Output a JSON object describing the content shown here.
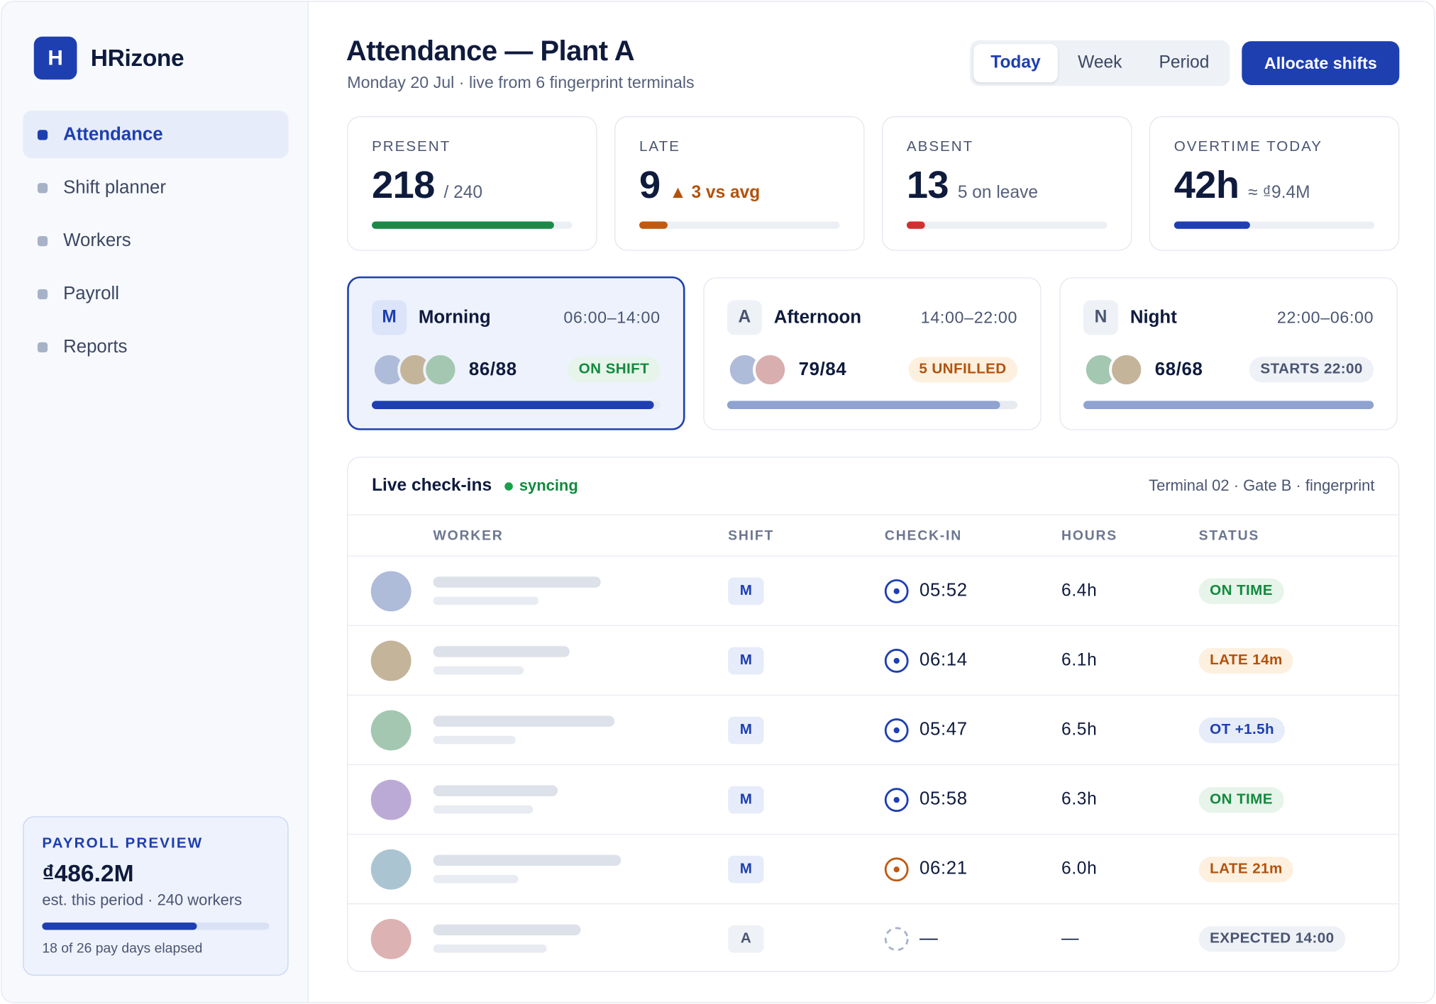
{
  "brand": {
    "logo_letter": "H",
    "name": "HRizone"
  },
  "nav": [
    {
      "label": "Attendance",
      "active": true
    },
    {
      "label": "Shift planner",
      "active": false
    },
    {
      "label": "Workers",
      "active": false
    },
    {
      "label": "Payroll",
      "active": false
    },
    {
      "label": "Reports",
      "active": false
    }
  ],
  "payroll_preview": {
    "title": "PAYROLL PREVIEW",
    "amount": "₫486.2M",
    "subtitle": "est. this period · 240 workers",
    "progress": 0.68,
    "footer": "18 of 26 pay days elapsed"
  },
  "header": {
    "title": "Attendance — Plant A",
    "subtitle": "Monday 20 Jul · live from 6 fingerprint terminals",
    "tabs": [
      {
        "label": "Today",
        "active": true
      },
      {
        "label": "Week",
        "active": false
      },
      {
        "label": "Period",
        "active": false
      }
    ],
    "primary_action": "Allocate shifts"
  },
  "kpis": [
    {
      "label": "PRESENT",
      "value": "218",
      "extra": "/ 240",
      "extra_style": "normal",
      "progress": 0.91,
      "color": "#1b8a47"
    },
    {
      "label": "LATE",
      "value": "9",
      "extra": "▲ 3 vs avg",
      "extra_style": "warn",
      "progress": 0.14,
      "color": "#c05a12"
    },
    {
      "label": "ABSENT",
      "value": "13",
      "extra": "5 on leave",
      "extra_style": "normal",
      "progress": 0.09,
      "color": "#d32f2f"
    },
    {
      "label": "OVERTIME TODAY",
      "value": "42h",
      "extra": "≈ ₫9.4M",
      "extra_style": "normal",
      "progress": 0.38,
      "color": "#1e3fb0"
    }
  ],
  "shifts": [
    {
      "badge": "M",
      "name": "Morning",
      "time": "06:00–14:00",
      "count": "86/88",
      "status": "ON SHIFT",
      "status_style": "green",
      "progress": 0.977,
      "bar_color": "#1e3fb0",
      "active": true,
      "avatars": [
        "#aebbd9",
        "#c4b49a",
        "#a3c7b0"
      ]
    },
    {
      "badge": "A",
      "name": "Afternoon",
      "time": "14:00–22:00",
      "count": "79/84",
      "status": "5 UNFILLED",
      "status_style": "amber",
      "progress": 0.94,
      "bar_color": "#8fa3d0",
      "active": false,
      "avatars": [
        "#aebbd9",
        "#d9aeae"
      ]
    },
    {
      "badge": "N",
      "name": "Night",
      "time": "22:00–06:00",
      "count": "68/68",
      "status": "STARTS 22:00",
      "status_style": "gray",
      "progress": 1.0,
      "bar_color": "#8fa3d0",
      "active": false,
      "avatars": [
        "#a3c7b0",
        "#c4b49a"
      ]
    }
  ],
  "checkins": {
    "title": "Live check-ins",
    "sync_label": "syncing",
    "terminal": "Terminal 02 · Gate B · fingerprint",
    "columns": [
      "WORKER",
      "SHIFT",
      "CHECK-IN",
      "HOURS",
      "STATUS"
    ],
    "rows": [
      {
        "avatar_color": "#aebbd9",
        "shift": "M",
        "time": "05:52",
        "icon": "clock-on-time",
        "icon_color": "#1e3fb0",
        "hours": "6.4h",
        "status": "ON TIME",
        "status_style": "green"
      },
      {
        "avatar_color": "#c4b49a",
        "shift": "M",
        "time": "06:14",
        "icon": "clock-on-time",
        "icon_color": "#1e3fb0",
        "hours": "6.1h",
        "status": "LATE 14m",
        "status_style": "amber"
      },
      {
        "avatar_color": "#a3c7b0",
        "shift": "M",
        "time": "05:47",
        "icon": "clock-on-time",
        "icon_color": "#1e3fb0",
        "hours": "6.5h",
        "status": "OT +1.5h",
        "status_style": "blue"
      },
      {
        "avatar_color": "#bcaad6",
        "shift": "M",
        "time": "05:58",
        "icon": "clock-on-time",
        "icon_color": "#1e3fb0",
        "hours": "6.3h",
        "status": "ON TIME",
        "status_style": "green"
      },
      {
        "avatar_color": "#abc4d2",
        "shift": "M",
        "time": "06:21",
        "icon": "clock-late",
        "icon_color": "#c05a12",
        "hours": "6.0h",
        "status": "LATE 21m",
        "status_style": "amber"
      },
      {
        "avatar_color": "#dcb2b2",
        "shift": "A",
        "time": "—",
        "icon": "clock-pending",
        "icon_color": "#a7b2c8",
        "hours": "—",
        "status": "EXPECTED 14:00",
        "status_style": "gray"
      }
    ]
  }
}
